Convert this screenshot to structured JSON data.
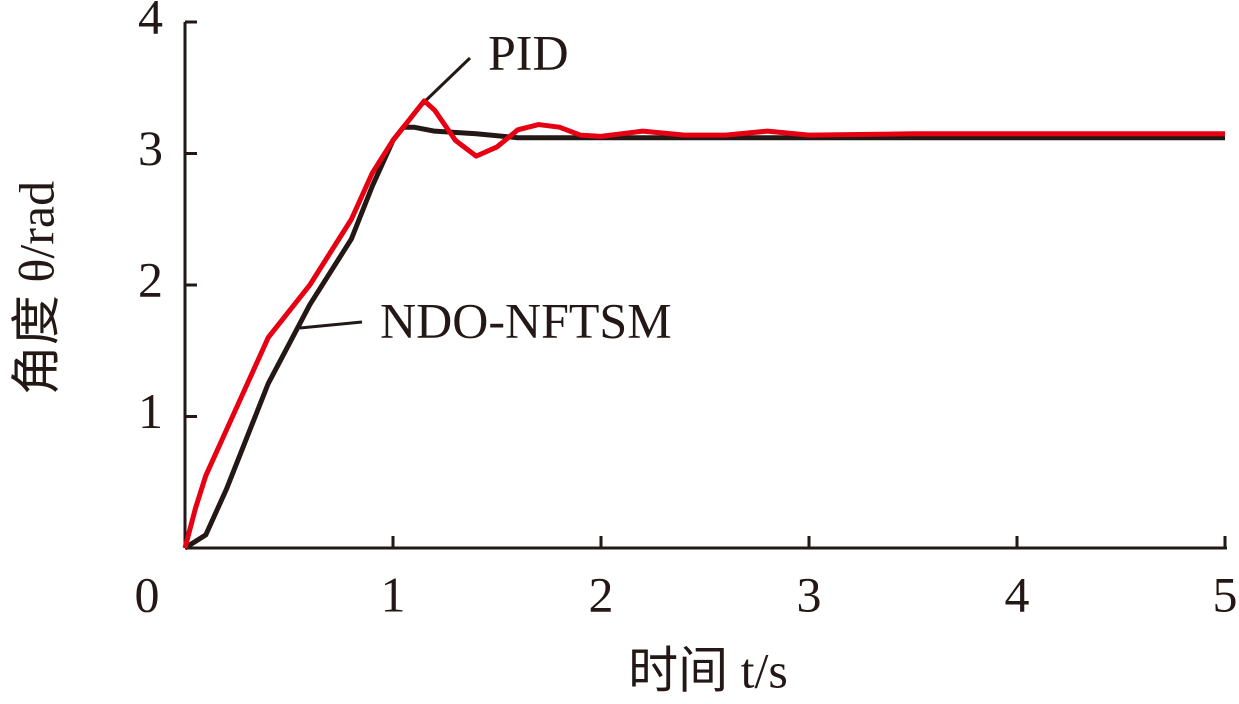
{
  "chart_data": {
    "type": "line",
    "xlabel": "时间 t/s",
    "ylabel": "角度 θ/rad",
    "xlim": [
      0,
      5
    ],
    "ylim": [
      0,
      4
    ],
    "xticks": [
      0,
      1,
      2,
      3,
      4,
      5
    ],
    "yticks": [
      1,
      2,
      3,
      4
    ],
    "annotations": [
      "PID",
      "NDO-NFTSM"
    ],
    "series": [
      {
        "name": "NDO-NFTSM",
        "color": "#231815",
        "x": [
          0,
          0.1,
          0.2,
          0.3,
          0.4,
          0.5,
          0.6,
          0.7,
          0.8,
          0.9,
          1.0,
          1.05,
          1.1,
          1.2,
          1.4,
          1.6,
          2.0,
          3.0,
          4.0,
          5.0
        ],
        "values": [
          0,
          0.1,
          0.45,
          0.85,
          1.25,
          1.55,
          1.85,
          2.1,
          2.35,
          2.75,
          3.1,
          3.2,
          3.2,
          3.17,
          3.15,
          3.12,
          3.12,
          3.12,
          3.12,
          3.12
        ]
      },
      {
        "name": "PID",
        "color": "#e60012",
        "x": [
          0,
          0.05,
          0.1,
          0.2,
          0.3,
          0.4,
          0.5,
          0.6,
          0.7,
          0.8,
          0.9,
          1.0,
          1.1,
          1.15,
          1.2,
          1.3,
          1.4,
          1.5,
          1.6,
          1.7,
          1.8,
          1.9,
          2.0,
          2.2,
          2.4,
          2.6,
          2.8,
          3.0,
          3.5,
          4.0,
          5.0
        ],
        "values": [
          0,
          0.3,
          0.55,
          0.9,
          1.25,
          1.6,
          1.8,
          2.0,
          2.25,
          2.5,
          2.85,
          3.1,
          3.3,
          3.4,
          3.33,
          3.1,
          2.98,
          3.05,
          3.18,
          3.22,
          3.2,
          3.14,
          3.13,
          3.17,
          3.14,
          3.14,
          3.17,
          3.14,
          3.15,
          3.15,
          3.15
        ]
      }
    ]
  }
}
